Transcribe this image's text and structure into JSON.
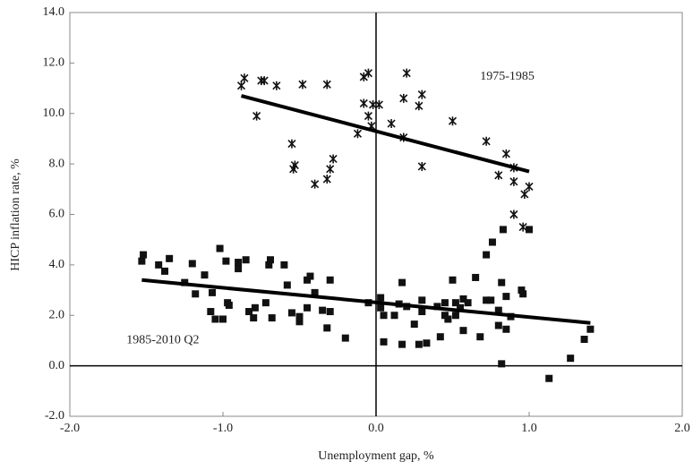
{
  "chart_data": {
    "type": "scatter",
    "xlabel": "Unemployment gap, %",
    "ylabel": "HICP inflation rate, %",
    "xlim": [
      -2,
      2
    ],
    "ylim": [
      -2,
      14
    ],
    "xticks": [
      {
        "value": -2,
        "label": "-2.0"
      },
      {
        "value": -1,
        "label": "-1.0"
      },
      {
        "value": 0,
        "label": "0.0"
      },
      {
        "value": 1,
        "label": "1.0"
      },
      {
        "value": 2,
        "label": "2.0"
      }
    ],
    "yticks": [
      {
        "value": -2,
        "label": "-2.0"
      },
      {
        "value": 0,
        "label": "0.0"
      },
      {
        "value": 2,
        "label": "2.0"
      },
      {
        "value": 4,
        "label": "4.0"
      },
      {
        "value": 6,
        "label": "6.0"
      },
      {
        "value": 8,
        "label": "8.0"
      },
      {
        "value": 10,
        "label": "10.0"
      },
      {
        "value": 12,
        "label": "12.0"
      },
      {
        "value": 14,
        "label": "14.0"
      }
    ],
    "series": [
      {
        "marker": "asterisk",
        "color": "#111111",
        "x": [
          -0.88,
          -0.86,
          -0.78,
          -0.75,
          -0.73,
          -0.65,
          -0.55,
          -0.54,
          -0.53,
          -0.48,
          -0.4,
          -0.32,
          -0.3,
          -0.28,
          -0.32,
          -0.12,
          -0.08,
          -0.08,
          -0.05,
          -0.05,
          -0.02,
          0.02,
          -0.03,
          0.1,
          0.18,
          0.2,
          0.18,
          0.28,
          0.3,
          0.3,
          0.5,
          0.72,
          0.8,
          0.85,
          0.9,
          0.9,
          0.9,
          0.96,
          0.97,
          1.0
        ],
        "values": [
          11.1,
          11.4,
          9.9,
          11.3,
          11.3,
          11.1,
          8.8,
          7.8,
          7.95,
          11.15,
          7.2,
          7.4,
          7.8,
          8.2,
          11.15,
          9.2,
          10.4,
          11.45,
          11.6,
          9.9,
          10.35,
          10.35,
          9.5,
          9.6,
          10.6,
          11.6,
          9.05,
          10.3,
          10.75,
          7.9,
          9.7,
          8.9,
          7.55,
          8.4,
          7.3,
          7.85,
          6.0,
          5.5,
          6.8,
          7.1
        ]
      },
      {
        "marker": "square",
        "color": "#111111",
        "x": [
          -1.53,
          -1.52,
          -1.42,
          -1.38,
          -1.35,
          -1.25,
          -1.2,
          -1.18,
          -1.12,
          -1.08,
          -1.07,
          -1.05,
          -1.02,
          -1.0,
          -0.98,
          -0.97,
          -0.96,
          -0.9,
          -0.9,
          -0.85,
          -0.83,
          -0.8,
          -0.79,
          -0.72,
          -0.7,
          -0.69,
          -0.68,
          -0.6,
          -0.58,
          -0.55,
          -0.5,
          -0.5,
          -0.45,
          -0.43,
          -0.45,
          -0.4,
          -0.35,
          -0.32,
          -0.3,
          -0.3,
          -0.2,
          -0.05,
          0.03,
          0.03,
          0.05,
          0.05,
          0.12,
          0.15,
          0.17,
          0.17,
          0.2,
          0.25,
          0.28,
          0.3,
          0.3,
          0.33,
          0.4,
          0.42,
          0.45,
          0.45,
          0.47,
          0.5,
          0.52,
          0.52,
          0.55,
          0.57,
          0.57,
          0.6,
          0.65,
          0.68,
          0.72,
          0.72,
          0.76,
          0.75,
          0.8,
          0.8,
          0.82,
          0.82,
          0.85,
          0.85,
          0.88,
          0.95,
          0.96,
          0.83,
          1.0,
          1.13,
          1.27,
          1.36,
          1.4
        ],
        "values": [
          4.15,
          4.4,
          4.0,
          3.75,
          4.25,
          3.3,
          4.05,
          2.85,
          3.6,
          2.15,
          2.9,
          1.85,
          4.65,
          1.85,
          4.15,
          2.5,
          2.4,
          4.1,
          3.85,
          4.2,
          2.15,
          1.9,
          2.3,
          2.5,
          4.0,
          4.2,
          1.9,
          4.0,
          3.2,
          2.1,
          1.75,
          1.95,
          2.3,
          3.55,
          3.4,
          2.9,
          2.2,
          1.5,
          3.4,
          2.15,
          1.1,
          2.5,
          2.7,
          2.3,
          0.95,
          2.0,
          2.0,
          2.45,
          0.85,
          3.3,
          2.35,
          1.65,
          0.85,
          2.6,
          2.15,
          0.9,
          2.35,
          1.15,
          2.0,
          2.5,
          1.85,
          3.4,
          2.5,
          2.0,
          2.3,
          2.65,
          1.4,
          2.5,
          3.5,
          1.15,
          2.6,
          4.4,
          4.9,
          2.6,
          2.2,
          1.6,
          3.3,
          0.08,
          2.75,
          1.45,
          1.95,
          3.0,
          2.85,
          5.4,
          5.4,
          -0.5,
          0.3,
          1.05,
          1.45
        ]
      }
    ],
    "trend_lines": [
      {
        "color": "#000000",
        "x": [
          -0.88,
          1.0
        ],
        "values": [
          10.7,
          7.7
        ]
      },
      {
        "color": "#000000",
        "x": [
          -1.53,
          1.4
        ],
        "values": [
          3.4,
          1.7
        ]
      }
    ],
    "annotations": [
      {
        "text": "1975-1985",
        "x": 0.68,
        "y": 11.45
      },
      {
        "text": "1985-2010 Q2",
        "x": -1.63,
        "y": 1.0
      }
    ]
  }
}
